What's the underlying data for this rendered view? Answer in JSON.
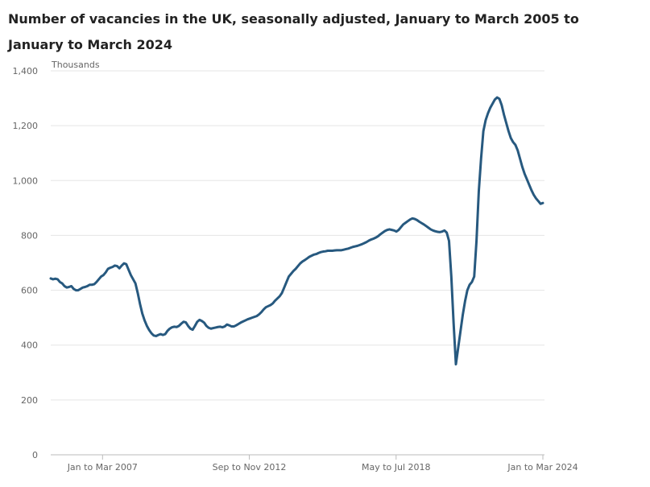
{
  "chart_data": {
    "type": "line",
    "title": "Number of vacancies in the UK, seasonally adjusted, January to March 2005 to January to March 2024",
    "ylabel": "Thousands",
    "ylim": [
      0,
      1400
    ],
    "yticks": [
      0,
      200,
      400,
      600,
      800,
      "1,000",
      "1,200",
      "1,400"
    ],
    "xticks": [
      "Jan to Mar 2007",
      "Sep to Nov 2012",
      "May to Jul 2018",
      "Jan to Mar 2024"
    ],
    "grid": true,
    "line_color": "#27597f",
    "x_start": "2005-02",
    "x_end": "2024-02",
    "series": [
      {
        "values": [
          643,
          640,
          642,
          640,
          630,
          625,
          615,
          610,
          612,
          615,
          605,
          600,
          600,
          605,
          610,
          612,
          615,
          620,
          620,
          622,
          630,
          640,
          650,
          655,
          665,
          678,
          682,
          685,
          690,
          688,
          680,
          690,
          698,
          695,
          675,
          655,
          640,
          625,
          590,
          550,
          515,
          490,
          470,
          455,
          443,
          435,
          433,
          437,
          440,
          437,
          440,
          452,
          460,
          465,
          467,
          466,
          470,
          478,
          485,
          483,
          470,
          460,
          456,
          470,
          485,
          492,
          488,
          482,
          470,
          463,
          460,
          462,
          464,
          466,
          467,
          465,
          468,
          475,
          472,
          468,
          468,
          472,
          477,
          482,
          486,
          490,
          494,
          497,
          500,
          503,
          506,
          512,
          520,
          530,
          538,
          542,
          546,
          552,
          562,
          570,
          578,
          590,
          610,
          630,
          650,
          660,
          670,
          678,
          688,
          698,
          705,
          710,
          716,
          722,
          726,
          730,
          732,
          736,
          739,
          741,
          742,
          744,
          744,
          744,
          745,
          746,
          746,
          746,
          748,
          750,
          752,
          755,
          758,
          760,
          762,
          765,
          768,
          772,
          776,
          781,
          785,
          788,
          792,
          797,
          804,
          810,
          816,
          820,
          822,
          820,
          818,
          814,
          820,
          830,
          840,
          846,
          852,
          858,
          862,
          860,
          856,
          850,
          845,
          840,
          834,
          828,
          822,
          818,
          815,
          813,
          812,
          814,
          818,
          810,
          780,
          650,
          480,
          330,
          390,
          450,
          510,
          560,
          600,
          620,
          630,
          650,
          780,
          960,
          1080,
          1180,
          1220,
          1245,
          1265,
          1280,
          1295,
          1303,
          1298,
          1275,
          1240,
          1210,
          1180,
          1155,
          1140,
          1130,
          1110,
          1080,
          1050,
          1025,
          1005,
          985,
          965,
          948,
          935,
          925,
          915,
          918
        ]
      }
    ]
  }
}
